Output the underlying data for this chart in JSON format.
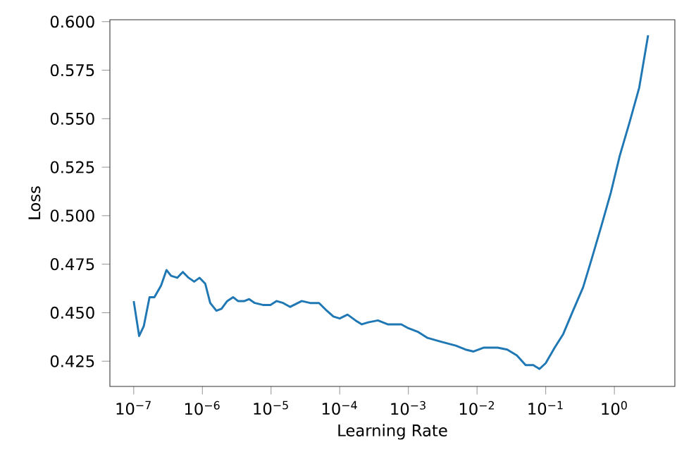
{
  "chart_data": {
    "type": "line",
    "xlabel": "Learning Rate",
    "ylabel": "Loss",
    "x": [
      1e-07,
      1.2e-07,
      1.4e-07,
      1.7e-07,
      2e-07,
      2.5e-07,
      3e-07,
      3.5e-07,
      4.3e-07,
      5.2e-07,
      6.3e-07,
      7.6e-07,
      9.1e-07,
      1.1e-06,
      1.3e-06,
      1.6e-06,
      1.9e-06,
      2.3e-06,
      2.8e-06,
      3.3e-06,
      4.1e-06,
      4.8e-06,
      5.8e-06,
      7.6e-06,
      9.8e-06,
      1.2e-05,
      1.5e-05,
      1.9e-05,
      2.8e-05,
      3.7e-05,
      5e-05,
      6.5e-05,
      8.1e-05,
      0.0001,
      0.00013,
      0.00017,
      0.00021,
      0.00026,
      0.00036,
      0.0005,
      0.00063,
      0.00079,
      0.001,
      0.0014,
      0.0019,
      0.003,
      0.0049,
      0.0068,
      0.0089,
      0.0126,
      0.02,
      0.0275,
      0.038,
      0.051,
      0.066,
      0.081,
      0.1,
      0.135,
      0.18,
      0.25,
      0.35,
      0.47,
      0.65,
      0.89,
      1.2,
      1.66,
      2.3,
      3.1
    ],
    "series": [
      {
        "color": "#1f77b4",
        "values": [
          0.456,
          0.438,
          0.443,
          0.458,
          0.458,
          0.464,
          0.472,
          0.469,
          0.468,
          0.471,
          0.468,
          0.466,
          0.468,
          0.465,
          0.455,
          0.451,
          0.452,
          0.456,
          0.458,
          0.456,
          0.456,
          0.457,
          0.455,
          0.454,
          0.454,
          0.456,
          0.455,
          0.453,
          0.456,
          0.455,
          0.455,
          0.451,
          0.448,
          0.447,
          0.449,
          0.446,
          0.444,
          0.445,
          0.446,
          0.444,
          0.444,
          0.444,
          0.442,
          0.44,
          0.437,
          0.435,
          0.433,
          0.431,
          0.43,
          0.432,
          0.432,
          0.431,
          0.428,
          0.423,
          0.423,
          0.421,
          0.424,
          0.432,
          0.439,
          0.451,
          0.463,
          0.478,
          0.495,
          0.512,
          0.531,
          0.548,
          0.566,
          0.593
        ]
      }
    ],
    "log": "x",
    "xlim": [
      4.5e-08,
      7.6
    ],
    "ylim": [
      0.412,
      0.601
    ],
    "xticks": [
      {
        "value": 1e-07,
        "label": "10$^{−7}$"
      },
      {
        "value": 1e-06,
        "label": "10$^{−6}$"
      },
      {
        "value": 1e-05,
        "label": "10$^{−5}$"
      },
      {
        "value": 0.0001,
        "label": "10$^{−4}$"
      },
      {
        "value": 0.001,
        "label": "10$^{−3}$"
      },
      {
        "value": 0.01,
        "label": "10$^{−2}$"
      },
      {
        "value": 0.1,
        "label": "10$^{−1}$"
      },
      {
        "value": 1,
        "label": "10$^{0}$"
      }
    ],
    "yticks": [
      {
        "value": 0.425,
        "label": "0.425"
      },
      {
        "value": 0.45,
        "label": "0.450"
      },
      {
        "value": 0.475,
        "label": "0.475"
      },
      {
        "value": 0.5,
        "label": "0.500"
      },
      {
        "value": 0.525,
        "label": "0.525"
      },
      {
        "value": 0.55,
        "label": "0.550"
      },
      {
        "value": 0.575,
        "label": "0.575"
      },
      {
        "value": 0.6,
        "label": "0.600"
      }
    ]
  }
}
